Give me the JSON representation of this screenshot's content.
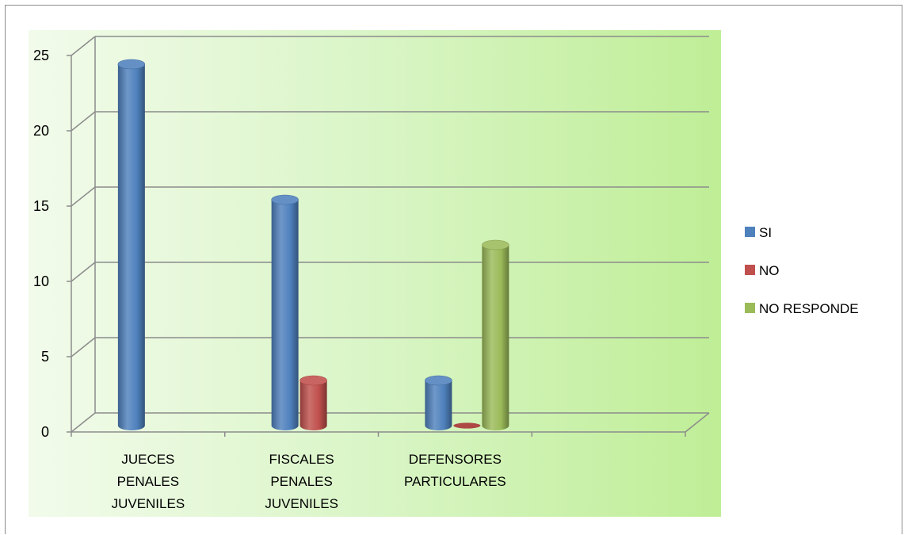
{
  "chart_data": {
    "type": "bar",
    "categories": [
      [
        "JUECES",
        "PENALES",
        "JUVENILES"
      ],
      [
        "FISCALES",
        "PENALES",
        "JUVENILES"
      ],
      [
        "DEFENSORES",
        "PARTICULARES"
      ],
      []
    ],
    "series": [
      {
        "name": "SI",
        "values": [
          24,
          15,
          3,
          null
        ],
        "color": "#4f81bd"
      },
      {
        "name": "NO",
        "values": [
          null,
          3,
          0,
          null
        ],
        "color": "#c0504d"
      },
      {
        "name": "NO RESPONDE",
        "values": [
          null,
          null,
          12,
          null
        ],
        "color": "#9bbb59"
      }
    ],
    "y_ticks": [
      "0",
      "5",
      "10",
      "15",
      "20",
      "25"
    ],
    "ylim": [
      0,
      25
    ],
    "grid": true,
    "legend_position": "right",
    "three_d": true,
    "title": "",
    "xlabel": "",
    "ylabel": ""
  }
}
